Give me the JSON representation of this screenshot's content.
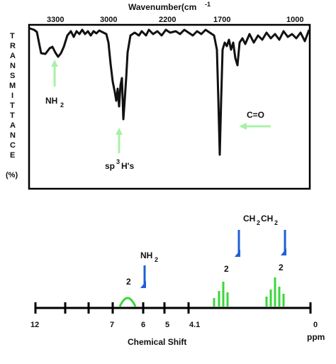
{
  "ir": {
    "title": "Wavenumber(cm",
    "title_sup": "-1",
    "ticks": [
      "3300",
      "3000",
      "2200",
      "1700",
      "1000"
    ],
    "ylabel_letters": [
      "T",
      "R",
      "A",
      "N",
      "S",
      "M",
      "I",
      "T",
      "T",
      "A",
      "N",
      "C",
      "E"
    ],
    "ylabel_unit": "(%)",
    "annotations": {
      "nh2": "NH",
      "nh2_sub": "2",
      "sp3": "sp",
      "sp3_sup": "3",
      "sp3_rest": "H's",
      "co": "C=O"
    },
    "colors": {
      "spectrum": "#111111",
      "arrow": "#a8f0a8",
      "frame": "#000000"
    }
  },
  "nmr": {
    "group_labels": {
      "nh2": "NH",
      "nh2_sub": "2",
      "ethyl_a": "CH",
      "ethyl_sub1": "2",
      "ethyl_b": "CH",
      "ethyl_sub2": "2"
    },
    "integrations": [
      "2",
      "2",
      "2"
    ],
    "axis_ticks": [
      "12",
      "7",
      "6",
      "5",
      "4.1",
      "0"
    ],
    "unit": "ppm",
    "xlabel": "Chemical Shift",
    "colors": {
      "peak": "#3ad63a",
      "marker": "#1f5fd6",
      "axis": "#000000"
    }
  }
}
